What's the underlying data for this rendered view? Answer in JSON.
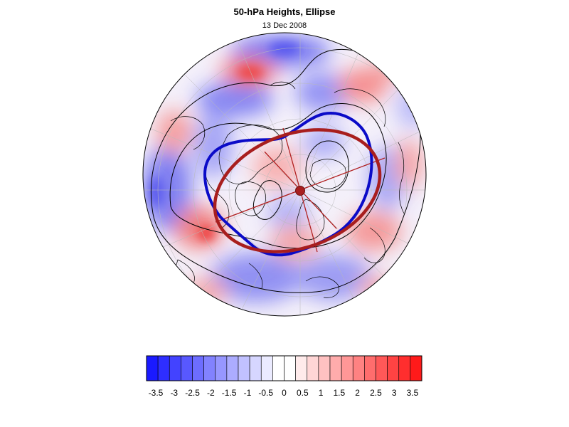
{
  "header": {
    "title": "50-hPa Heights, Ellipse",
    "subtitle": "13 Dec 2008"
  },
  "colors": {
    "vortex_contour": "#0b0bc8",
    "fitted_ellipse": "#a81e1e",
    "negative_max": "#1010ff",
    "positive_max": "#ff1010"
  },
  "map": {
    "projection": "north-polar-stereographic",
    "features": [
      "coastlines",
      "lat-lon-gridlines",
      "height-anomaly-shading",
      "height-contours",
      "vortex-edge-contour",
      "fitted-ellipse",
      "ellipse-axes",
      "vortex-centroid"
    ]
  },
  "colorbar": {
    "colors": [
      "#1a1aff",
      "#2e2eff",
      "#4343ff",
      "#5858ff",
      "#6d6dff",
      "#8282ff",
      "#9797ff",
      "#acacff",
      "#c1c1ff",
      "#d6d6ff",
      "#ebebff",
      "#ffffff",
      "#ffffff",
      "#ffebeb",
      "#ffd6d6",
      "#ffc1c1",
      "#ffacac",
      "#ff9797",
      "#ff8282",
      "#ff6d6d",
      "#ff5858",
      "#ff4343",
      "#ff2e2e",
      "#ff1a1a"
    ],
    "labels": [
      "-3.5",
      "-3",
      "-2.5",
      "-2",
      "-1.5",
      "-1",
      "-0.5",
      "0",
      "0.5",
      "1",
      "1.5",
      "2",
      "2.5",
      "3",
      "3.5"
    ]
  }
}
